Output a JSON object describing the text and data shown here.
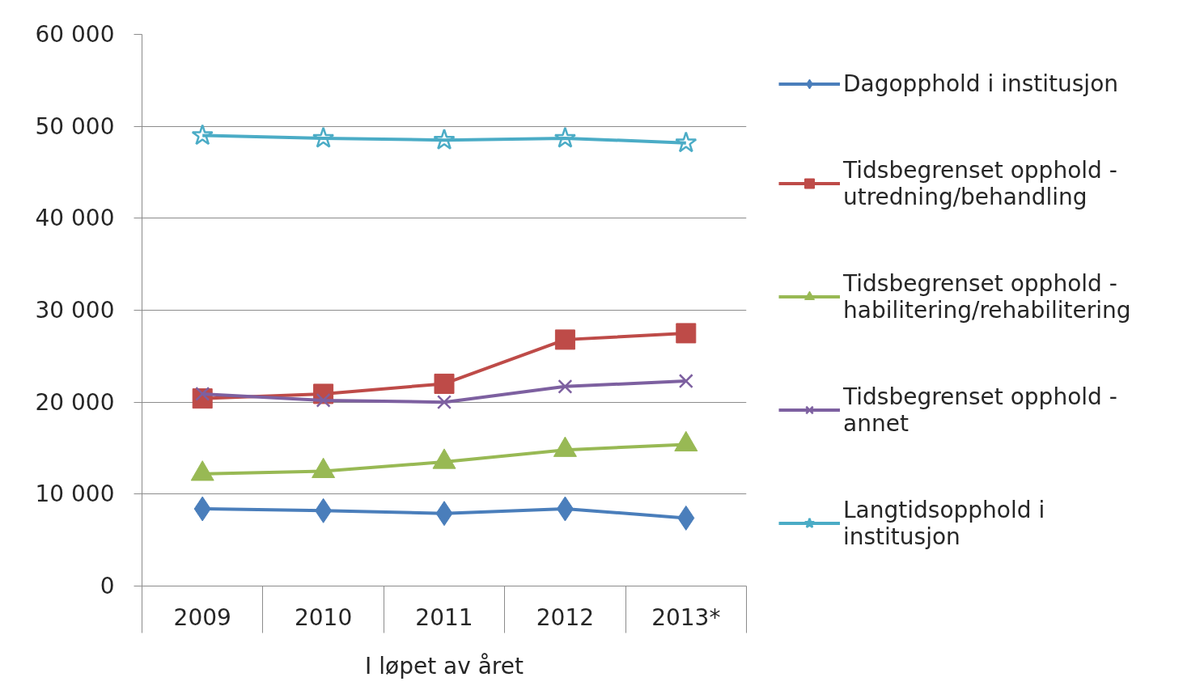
{
  "chart_data": {
    "type": "line",
    "categories": [
      "2009",
      "2010",
      "2011",
      "2012",
      "2013*"
    ],
    "xlabel": "I løpet av året",
    "ylim": [
      0,
      60000
    ],
    "yticks": [
      0,
      {
        "value": 10000,
        "label": "10 000"
      },
      {
        "value": 20000,
        "label": "20 000"
      },
      {
        "value": 30000,
        "label": "30 000"
      },
      {
        "value": 40000,
        "label": "40 000"
      },
      {
        "value": 50000,
        "label": "50 000"
      },
      {
        "value": 60000,
        "label": "60 000"
      }
    ],
    "grid": "y",
    "legend": "right",
    "series": [
      {
        "name": "Dagopphold i institusjon",
        "color": "#4a7ebb",
        "marker": "diamond",
        "values": [
          8400,
          8200,
          7900,
          8400,
          7400
        ]
      },
      {
        "name": "Tidsbegrenset opphold - utredning/behandling",
        "color": "#be4b48",
        "marker": "square",
        "values": [
          20400,
          20900,
          22000,
          26800,
          27500
        ]
      },
      {
        "name": "Tidsbegrenset opphold - habilitering/rehabilitering",
        "color": "#98b954",
        "marker": "triangle",
        "values": [
          12200,
          12500,
          13500,
          14800,
          15400
        ]
      },
      {
        "name": "Tidsbegrenset opphold - annet",
        "color": "#7d60a0",
        "marker": "cross",
        "values": [
          20900,
          20200,
          20000,
          21700,
          22300
        ]
      },
      {
        "name": "Langtidsopphold i institusjon",
        "color": "#4bacc6",
        "marker": "star",
        "values": [
          49000,
          48700,
          48500,
          48700,
          48200
        ]
      }
    ]
  }
}
